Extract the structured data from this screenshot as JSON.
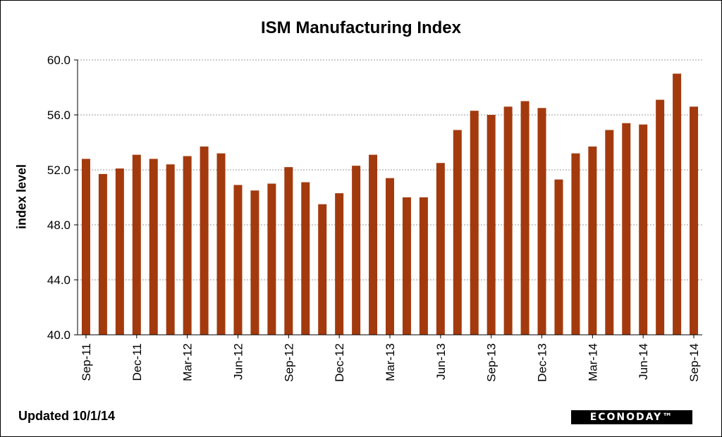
{
  "chart_data": {
    "type": "bar",
    "title": "ISM Manufacturing Index",
    "xlabel": "",
    "ylabel": "index level",
    "ylim": [
      40,
      60
    ],
    "yticks": [
      "40.0",
      "44.0",
      "48.0",
      "52.0",
      "56.0",
      "60.0"
    ],
    "grid": true,
    "bar_color": "#a33a0e",
    "categories": [
      "Sep-11",
      "Oct-11",
      "Nov-11",
      "Dec-11",
      "Jan-12",
      "Feb-12",
      "Mar-12",
      "Apr-12",
      "May-12",
      "Jun-12",
      "Jul-12",
      "Aug-12",
      "Sep-12",
      "Oct-12",
      "Nov-12",
      "Dec-12",
      "Jan-13",
      "Feb-13",
      "Mar-13",
      "Apr-13",
      "May-13",
      "Jun-13",
      "Jul-13",
      "Aug-13",
      "Sep-13",
      "Oct-13",
      "Nov-13",
      "Dec-13",
      "Jan-14",
      "Feb-14",
      "Mar-14",
      "Apr-14",
      "May-14",
      "Jun-14",
      "Jul-14",
      "Aug-14",
      "Sep-14"
    ],
    "xtick_labels": [
      "Sep-11",
      "Dec-11",
      "Mar-12",
      "Jun-12",
      "Sep-12",
      "Dec-12",
      "Mar-13",
      "Jun-13",
      "Sep-13",
      "Dec-13",
      "Mar-14",
      "Jun-14",
      "Sep-14"
    ],
    "values": [
      52.8,
      51.7,
      52.1,
      53.1,
      52.8,
      52.4,
      53.0,
      53.7,
      53.2,
      50.9,
      50.5,
      51.0,
      52.2,
      51.1,
      49.5,
      50.3,
      52.3,
      53.1,
      51.4,
      50.0,
      50.0,
      52.5,
      54.9,
      56.3,
      56.0,
      56.6,
      57.0,
      56.5,
      51.3,
      53.2,
      53.7,
      54.9,
      55.4,
      55.3,
      57.1,
      59.0,
      56.6
    ]
  },
  "footer": {
    "updated": "Updated  10/1/14",
    "logo": "ECONODAY™"
  }
}
